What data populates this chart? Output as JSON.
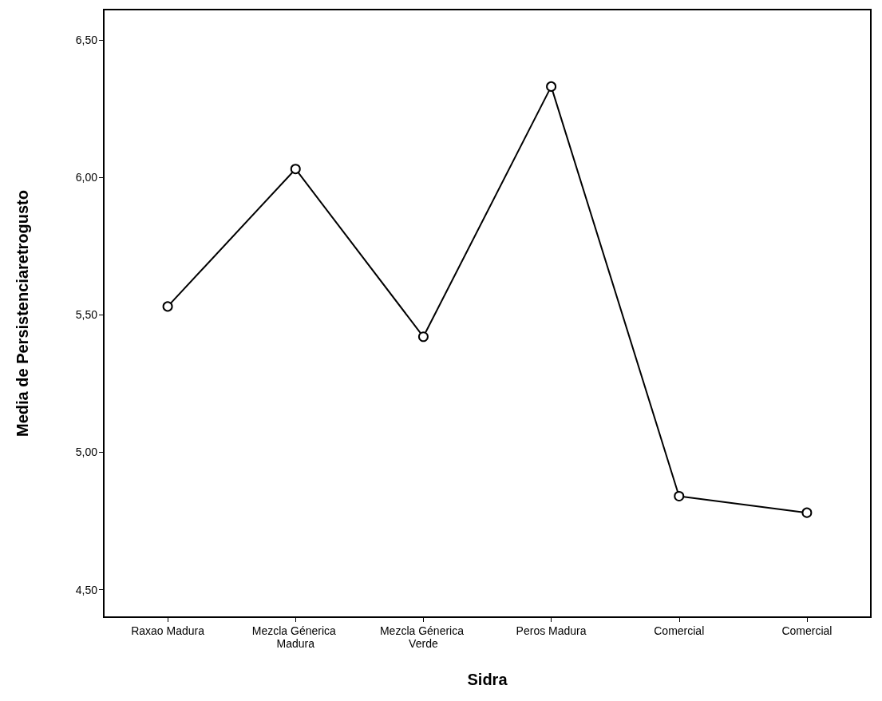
{
  "chart_data": {
    "type": "line",
    "xlabel": "Sidra",
    "ylabel": "Media de Persistenciaretrogusto",
    "categories": [
      "Raxao Madura",
      "Mezcla Génerica Madura",
      "Mezcla Génerica Verde",
      "Peros Madura",
      "Comercial",
      "Comercial"
    ],
    "series": [
      {
        "color": "#000000",
        "values": [
          5.53,
          6.03,
          5.42,
          6.33,
          4.84,
          4.78
        ]
      }
    ],
    "ylim": [
      4.4,
      6.61
    ],
    "yticks": [
      {
        "value": 4.5,
        "label": "4,50"
      },
      {
        "value": 5,
        "label": "5,00"
      },
      {
        "value": 5.5,
        "label": "5,50"
      },
      {
        "value": 6,
        "label": "6,00"
      },
      {
        "value": 6.5,
        "label": "6,50"
      }
    ],
    "grid": false,
    "marker": "circle",
    "line_style": "solid"
  }
}
